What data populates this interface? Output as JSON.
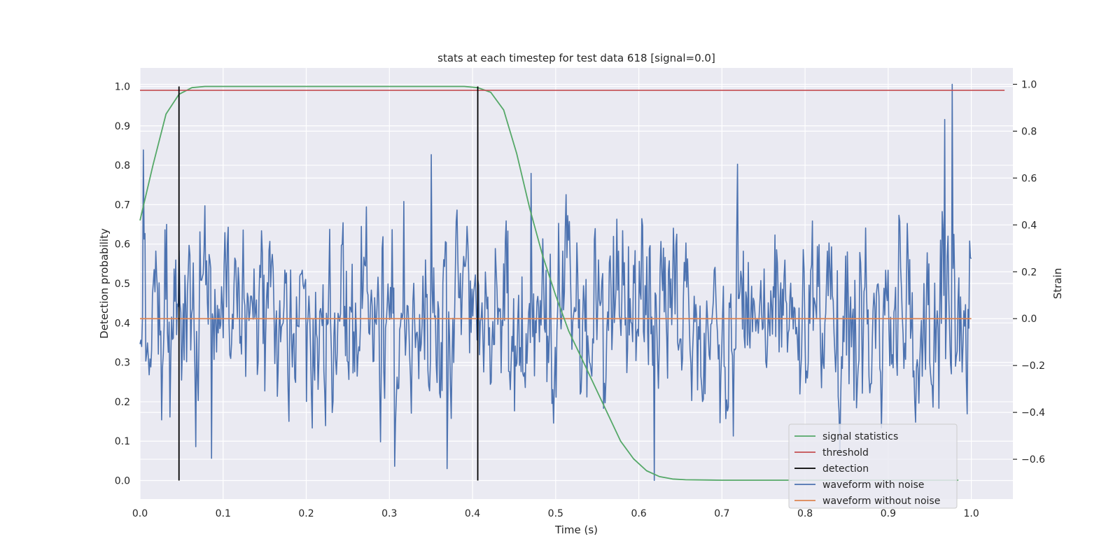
{
  "chart_data": {
    "type": "line",
    "title": "stats at each timestep for test data 618 [signal=0.0]",
    "xlabel": "Time (s)",
    "ylabel": "Detection probability",
    "y2label": "Strain",
    "xlim": [
      0.0,
      1.05
    ],
    "ylim": [
      -0.047,
      1.047
    ],
    "y2lim": [
      -0.77,
      1.07
    ],
    "xticks": [
      0.0,
      0.1,
      0.2,
      0.3,
      0.4,
      0.5,
      0.6,
      0.7,
      0.8,
      0.9,
      1.0
    ],
    "yticks": [
      0.0,
      0.1,
      0.2,
      0.3,
      0.4,
      0.5,
      0.6,
      0.7,
      0.8,
      0.9,
      1.0
    ],
    "y2ticks": [
      -0.6,
      -0.4,
      -0.2,
      0.0,
      0.2,
      0.4,
      0.6,
      0.8,
      1.0
    ],
    "grid": true,
    "legend_position": "lower-right",
    "colors": {
      "signal": "#55a868",
      "threshold": "#c44e52",
      "detection": "#000000",
      "noisy": "#4c72b0",
      "clean": "#dd8452",
      "background": "#eaeaf2",
      "grid": "#ffffff"
    },
    "series": [
      {
        "name": "signal statistics",
        "axis": "left",
        "x": [
          0.0,
          0.0156,
          0.0313,
          0.0469,
          0.0625,
          0.0781,
          0.1,
          0.2,
          0.3,
          0.39,
          0.4063,
          0.4219,
          0.4375,
          0.4531,
          0.4688,
          0.4844,
          0.5,
          0.5156,
          0.5313,
          0.5469,
          0.5625,
          0.5781,
          0.5938,
          0.6094,
          0.625,
          0.6406,
          0.6563,
          0.7,
          0.8,
          0.9,
          0.95,
          0.9844
        ],
        "values": [
          0.66,
          0.8,
          0.93,
          0.98,
          0.997,
          1.0,
          1.0,
          1.0,
          1.0,
          1.0,
          0.997,
          0.985,
          0.94,
          0.83,
          0.69,
          0.57,
          0.47,
          0.38,
          0.31,
          0.24,
          0.17,
          0.1,
          0.055,
          0.025,
          0.01,
          0.004,
          0.002,
          0.001,
          0.001,
          0.001,
          0.001,
          0.001
        ]
      },
      {
        "name": "threshold",
        "axis": "left",
        "x": [
          0.0,
          1.04
        ],
        "values": [
          0.99,
          0.99
        ]
      },
      {
        "name": "detection",
        "axis": "left",
        "x": [
          0.0469,
          0.4063
        ],
        "range": [
          0.0,
          1.0
        ]
      },
      {
        "name": "waveform with noise",
        "axis": "right",
        "n_samples": 1000,
        "x_start": 0.0,
        "x_end": 1.0,
        "std": 0.2,
        "values_min": -0.69,
        "values_max": 1.0,
        "peaks": [
          {
            "x": 0.977,
            "value": 1.0
          },
          {
            "x": 0.968,
            "value": 0.85
          },
          {
            "x": 0.004,
            "value": 0.72
          },
          {
            "x": 0.35,
            "value": 0.7
          },
          {
            "x": 0.47,
            "value": 0.62
          },
          {
            "x": 0.619,
            "value": -0.69
          },
          {
            "x": 0.306,
            "value": -0.63
          },
          {
            "x": 0.369,
            "value": -0.64
          }
        ]
      },
      {
        "name": "waveform without noise",
        "axis": "right",
        "x": [
          0.0,
          1.0
        ],
        "values": [
          0.0,
          0.0
        ]
      }
    ]
  }
}
